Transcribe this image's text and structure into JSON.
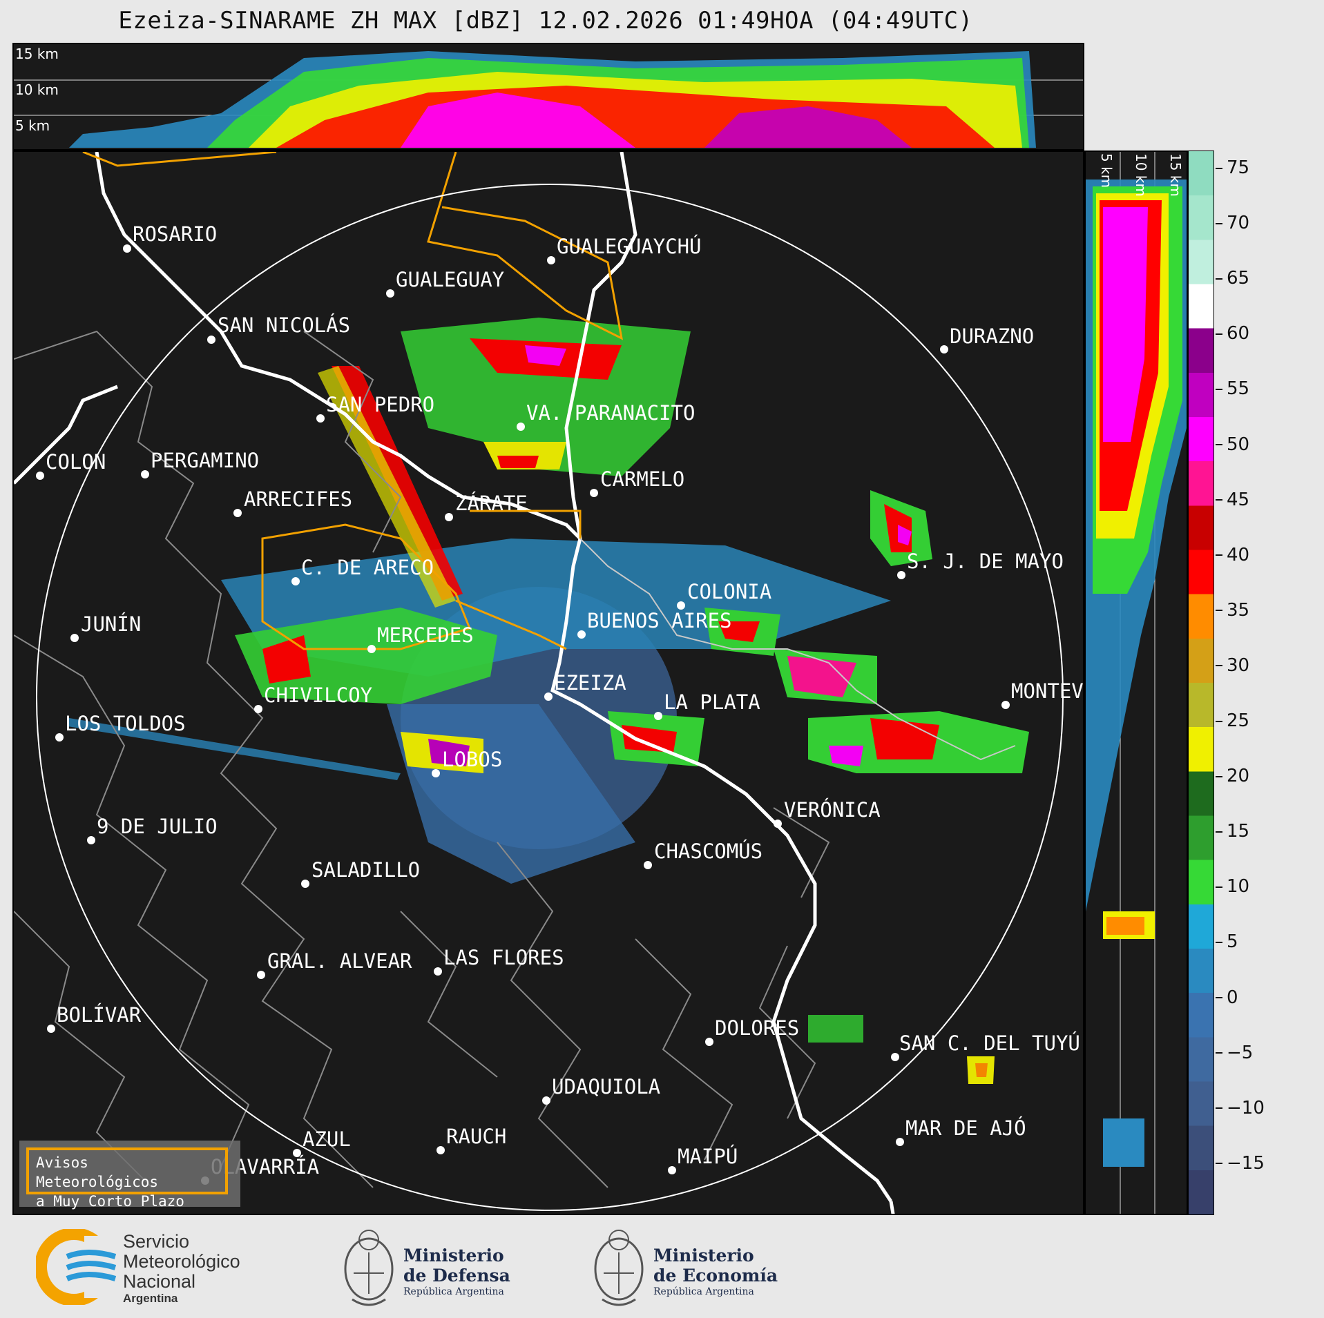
{
  "title": "Ezeiza-SINARAME ZH MAX [dBZ] 12.02.2026 01:49HOA (04:49UTC)",
  "top_panel": {
    "labels": [
      "15 km",
      "10 km",
      "5 km"
    ]
  },
  "side_panel": {
    "labels": [
      "5 km",
      "10 km",
      "15 km"
    ]
  },
  "colorbar": {
    "ticks": [
      "75",
      "70",
      "65",
      "60",
      "55",
      "50",
      "45",
      "40",
      "35",
      "30",
      "25",
      "20",
      "15",
      "10",
      "5",
      "0",
      "−5",
      "−10",
      "−15"
    ],
    "colors": [
      "#8fdcc0",
      "#a5e6cc",
      "#c0efde",
      "#ffffff",
      "#8b008b",
      "#c000c0",
      "#ff00ff",
      "#ff1493",
      "#c80000",
      "#ff0000",
      "#ff8c00",
      "#d4a017",
      "#b8b82a",
      "#f0f000",
      "#1e6b1e",
      "#2e9e2e",
      "#36d936",
      "#1fa8d8",
      "#2a8ac0",
      "#3a73b0",
      "#3f6aa0",
      "#405f90",
      "#3c4f7a",
      "#37406a"
    ]
  },
  "cities": [
    {
      "name": "ROSARIO"
    },
    {
      "name": "GUALEGUAYCHÚ"
    },
    {
      "name": "GUALEGUAY"
    },
    {
      "name": "SAN NICOLÁS"
    },
    {
      "name": "DURAZNO"
    },
    {
      "name": "SAN PEDRO"
    },
    {
      "name": "VA. PARANACITO"
    },
    {
      "name": "COLON"
    },
    {
      "name": "PERGAMINO"
    },
    {
      "name": "CARMELO"
    },
    {
      "name": "ARRECIFES"
    },
    {
      "name": "ZÁRATE"
    },
    {
      "name": "S. J. DE MAYO"
    },
    {
      "name": "C. DE ARECO"
    },
    {
      "name": "COLONIA"
    },
    {
      "name": "JUNÍN"
    },
    {
      "name": "BUENOS AIRES"
    },
    {
      "name": "MERCEDES"
    },
    {
      "name": "MONTEV"
    },
    {
      "name": "EZEIZA"
    },
    {
      "name": "CHIVILCOY"
    },
    {
      "name": "LA PLATA"
    },
    {
      "name": "LOS TOLDOS"
    },
    {
      "name": "LOBOS"
    },
    {
      "name": "VERÓNICA"
    },
    {
      "name": "9 DE JULIO"
    },
    {
      "name": "CHASCOMÚS"
    },
    {
      "name": "SALADILLO"
    },
    {
      "name": "GRAL. ALVEAR"
    },
    {
      "name": "LAS FLORES"
    },
    {
      "name": "BOLÍVAR"
    },
    {
      "name": "DOLORES"
    },
    {
      "name": "SAN C. DEL TUYÚ"
    },
    {
      "name": "UDAQUIOLA"
    },
    {
      "name": "MAR DE AJÓ"
    },
    {
      "name": "AZUL"
    },
    {
      "name": "RAUCH"
    },
    {
      "name": "OLAVARRÍA"
    },
    {
      "name": "MAIPÚ"
    }
  ],
  "warning_box": {
    "line1": "Avisos Meteorológicos",
    "line2": "a Muy Corto Plazo",
    "border_color": "#f2a100"
  },
  "logos": {
    "smn": {
      "line1": "Servicio",
      "line2": "Meteorológico",
      "line3": "Nacional",
      "line4": "Argentina"
    },
    "defensa": {
      "line1": "Ministerio",
      "line2": "de Defensa",
      "line3": "República Argentina"
    },
    "economia": {
      "line1": "Ministerio",
      "line2": "de Economía",
      "line3": "República Argentina"
    }
  }
}
